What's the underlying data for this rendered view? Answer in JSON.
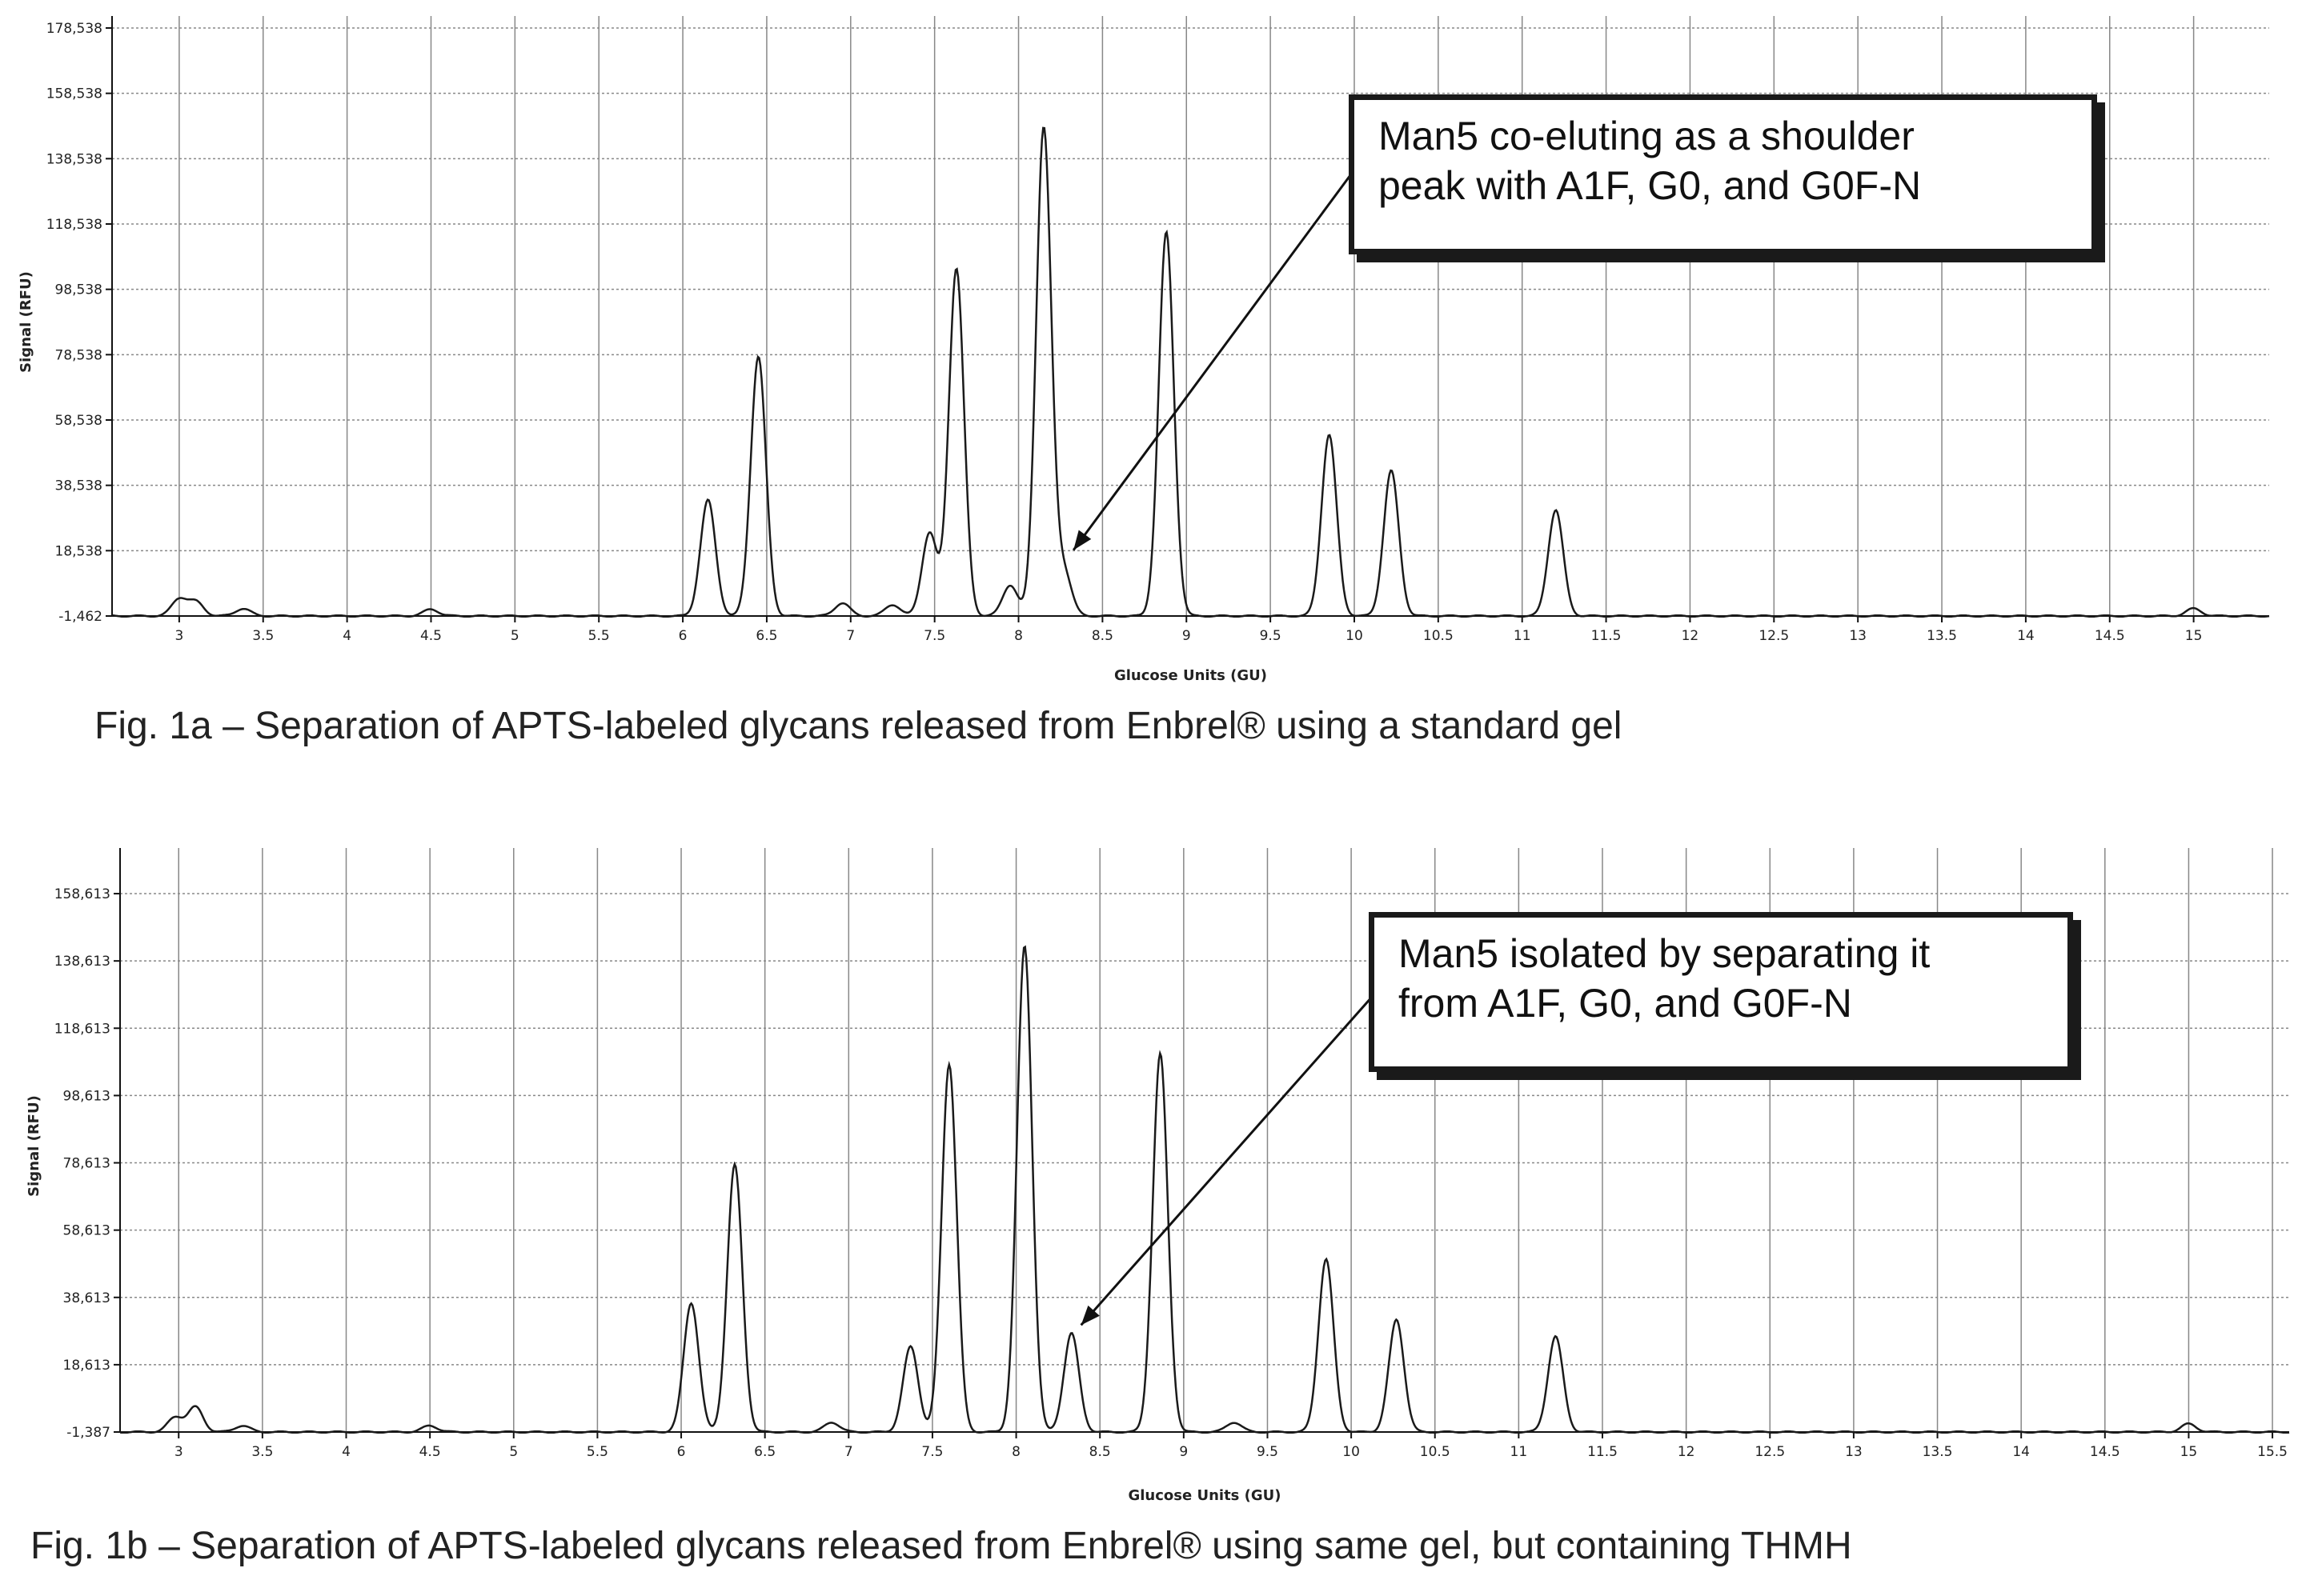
{
  "chart_data": [
    {
      "type": "line",
      "xlabel": "Glucose Units (GU)",
      "ylabel": "Signal (RFU)",
      "xlim": [
        2.6,
        15.45
      ],
      "xticks": [
        "3",
        "3.5",
        "4",
        "4.5",
        "5",
        "5.5",
        "6",
        "6.5",
        "7",
        "7.5",
        "8",
        "8.5",
        "9",
        "9.5",
        "10",
        "10.5",
        "11",
        "11.5",
        "12",
        "12.5",
        "13",
        "13.5",
        "14",
        "14.5",
        "15"
      ],
      "ylim": [
        -1462,
        178538
      ],
      "yticks": [
        "-1,462",
        "18,538",
        "38,538",
        "58,538",
        "78,538",
        "98,538",
        "118,538",
        "138,538",
        "158,538",
        "178,538"
      ],
      "grid": true,
      "baseline": -1462,
      "peaks": [
        {
          "x": 3.0,
          "y": 3800
        },
        {
          "x": 3.1,
          "y": 2800
        },
        {
          "x": 3.38,
          "y": 800
        },
        {
          "x": 4.5,
          "y": 600
        },
        {
          "x": 6.15,
          "y": 34000
        },
        {
          "x": 6.45,
          "y": 78000
        },
        {
          "x": 6.95,
          "y": 2500
        },
        {
          "x": 7.25,
          "y": 2000
        },
        {
          "x": 7.47,
          "y": 24000
        },
        {
          "x": 7.63,
          "y": 105000
        },
        {
          "x": 7.95,
          "y": 8000
        },
        {
          "x": 8.15,
          "y": 148000
        },
        {
          "x": 8.27,
          "y": 12000
        },
        {
          "x": 8.88,
          "y": 116000
        },
        {
          "x": 9.85,
          "y": 54000
        },
        {
          "x": 10.22,
          "y": 43000
        },
        {
          "x": 11.2,
          "y": 31000
        },
        {
          "x": 15.0,
          "y": 800
        }
      ],
      "annotation": {
        "lines": [
          "Man5 co-eluting as a shoulder",
          "peak with A1F, G0, and G0F-N"
        ],
        "points_to_x": 8.27
      }
    },
    {
      "type": "line",
      "xlabel": "Glucose Units (GU)",
      "ylabel": "Signal (RFU)",
      "xlim": [
        2.65,
        15.6
      ],
      "xticks": [
        "3",
        "3.5",
        "4",
        "4.5",
        "5",
        "5.5",
        "6",
        "6.5",
        "7",
        "7.5",
        "8",
        "8.5",
        "9",
        "9.5",
        "10",
        "10.5",
        "11",
        "11.5",
        "12",
        "12.5",
        "13",
        "13.5",
        "14",
        "14.5",
        "15",
        "15.5"
      ],
      "ylim": [
        -1387,
        168613
      ],
      "yticks": [
        "-1,387",
        "18,613",
        "38,613",
        "58,613",
        "78,613",
        "98,613",
        "118,613",
        "138,613",
        "158,613"
      ],
      "grid": true,
      "baseline": -1387,
      "peaks": [
        {
          "x": 2.98,
          "y": 3000
        },
        {
          "x": 3.1,
          "y": 6000
        },
        {
          "x": 3.38,
          "y": 500
        },
        {
          "x": 4.5,
          "y": 500
        },
        {
          "x": 6.06,
          "y": 37000
        },
        {
          "x": 6.32,
          "y": 78000
        },
        {
          "x": 6.9,
          "y": 1500
        },
        {
          "x": 7.37,
          "y": 24000
        },
        {
          "x": 7.6,
          "y": 108000
        },
        {
          "x": 8.05,
          "y": 143000
        },
        {
          "x": 8.33,
          "y": 28000
        },
        {
          "x": 8.86,
          "y": 111000
        },
        {
          "x": 9.3,
          "y": 1500
        },
        {
          "x": 9.85,
          "y": 50000
        },
        {
          "x": 10.27,
          "y": 32000
        },
        {
          "x": 11.22,
          "y": 27000
        },
        {
          "x": 15.0,
          "y": 1000
        }
      ],
      "annotation": {
        "lines": [
          "Man5 isolated by separating it",
          "from A1F, G0, and G0F-N"
        ],
        "points_to_x": 8.33
      }
    }
  ],
  "captions": {
    "a": "Fig. 1a – Separation of APTS-labeled glycans released from Enbrel® using a standard gel",
    "b": "Fig. 1b – Separation of APTS-labeled glycans released from Enbrel® using same gel, but containing THMH"
  },
  "colors": {
    "line": "#1a1a1a",
    "grid": "#888888",
    "axis": "#111111"
  }
}
